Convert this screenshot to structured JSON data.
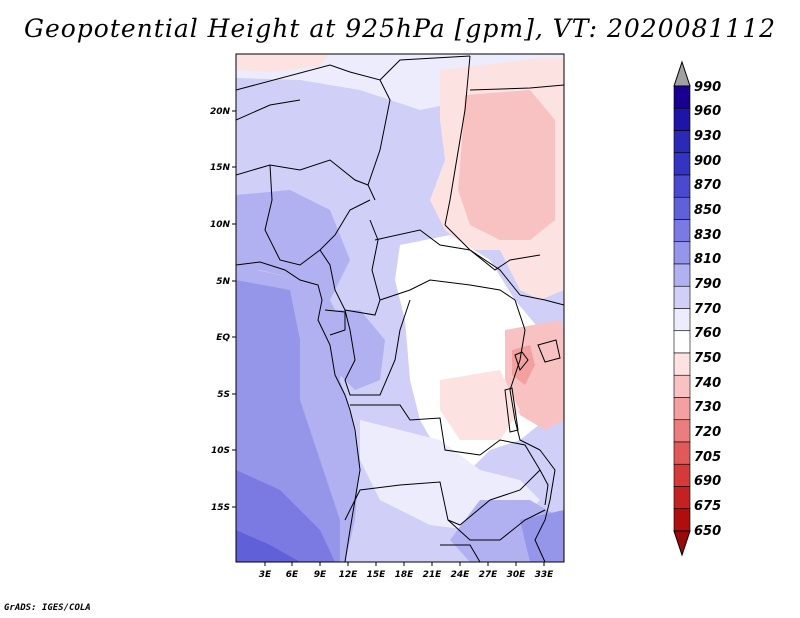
{
  "title": "Geopotential Height at 925hPa [gpm], VT: 2020081112",
  "credit": "GrADS: IGES/COLA",
  "map": {
    "variable": "Geopotential Height",
    "level": "925hPa",
    "units": "gpm",
    "valid_time": "2020081112",
    "lat_labels": [
      "20N",
      "15N",
      "10N",
      "5N",
      "EQ",
      "5S",
      "10S",
      "15S"
    ],
    "lon_labels": [
      "3E",
      "6E",
      "9E",
      "12E",
      "15E",
      "18E",
      "21E",
      "24E",
      "27E",
      "30E",
      "33E"
    ]
  },
  "colorbar": {
    "levels": [
      "990",
      "960",
      "930",
      "900",
      "870",
      "850",
      "830",
      "810",
      "790",
      "770",
      "760",
      "750",
      "740",
      "730",
      "720",
      "705",
      "690",
      "675",
      "650"
    ],
    "colors": [
      "#1a0090",
      "#1e14a6",
      "#2a2ab6",
      "#3434c2",
      "#4a4ace",
      "#6060d8",
      "#7a7ae2",
      "#9595ea",
      "#b1b1f2",
      "#cfcff8",
      "#ececfd",
      "#ffffff",
      "#fde2e2",
      "#f8c2c2",
      "#f2a0a0",
      "#ea7e7e",
      "#e05a5a",
      "#d43a3a",
      "#c42222",
      "#b00e0e"
    ],
    "top_arrow_color": "#a0a0a0",
    "bottom_arrow_color": "#9a0a0a"
  }
}
